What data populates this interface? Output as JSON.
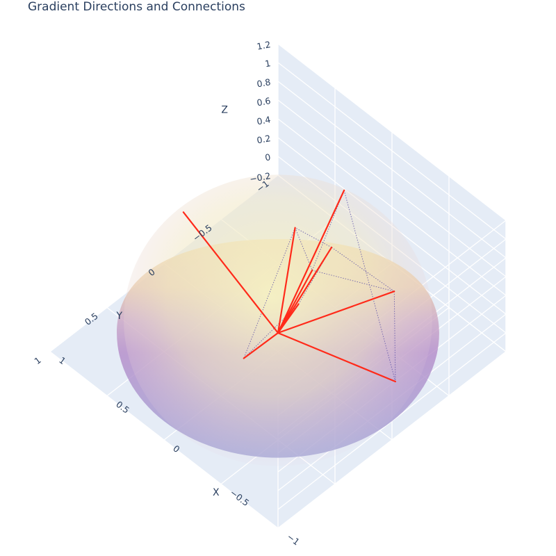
{
  "chart_data": {
    "type": "scatter3d",
    "title": "Gradient Directions and Connections",
    "axes": {
      "x": {
        "label": "X",
        "range": [
          -1,
          1
        ],
        "ticks": [
          "−1",
          "−0.5",
          "0",
          "0.5",
          "1"
        ]
      },
      "y": {
        "label": "Y",
        "range": [
          -1,
          1
        ],
        "ticks": [
          "−1",
          "−0.5",
          "0",
          "0.5",
          "1"
        ]
      },
      "z": {
        "label": "Z",
        "range": [
          -0.2,
          1.2
        ],
        "ticks": [
          "−0.2",
          "0",
          "0.2",
          "0.4",
          "0.6",
          "0.8",
          "1",
          "1.2"
        ]
      }
    },
    "surface": {
      "shape": "hemisphere",
      "radius": 1,
      "colorscale": [
        "#9a8fd0",
        "#f5f0b8"
      ],
      "opacity": 0.55
    },
    "vectors": [
      {
        "end": [
          0.0,
          -0.15,
          0.98
        ]
      },
      {
        "end": [
          -0.3,
          0.0,
          0.95
        ]
      },
      {
        "end": [
          -0.62,
          -0.4,
          0.65
        ]
      },
      {
        "end": [
          -0.95,
          -0.08,
          0.3
        ]
      },
      {
        "end": [
          -0.35,
          0.65,
          0.67
        ]
      },
      {
        "end": [
          -0.4,
          0.22,
          0.89
        ]
      },
      {
        "end": [
          0.22,
          -0.8,
          0.56
        ]
      },
      {
        "end": [
          0.95,
          -0.12,
          0.28
        ]
      },
      {
        "end": [
          -0.25,
          -0.22,
          0.94
        ]
      }
    ],
    "connections": [
      [
        0,
        1
      ],
      [
        1,
        2
      ],
      [
        2,
        3
      ],
      [
        1,
        6
      ],
      [
        6,
        3
      ],
      [
        0,
        4
      ],
      [
        4,
        5
      ],
      [
        5,
        8
      ],
      [
        8,
        0
      ],
      [
        2,
        8
      ]
    ],
    "colors": {
      "vector": "#ff2a1a",
      "connection": "#5b4fa8",
      "grid": "#ffffff",
      "pane": "#e5ecf6"
    }
  }
}
